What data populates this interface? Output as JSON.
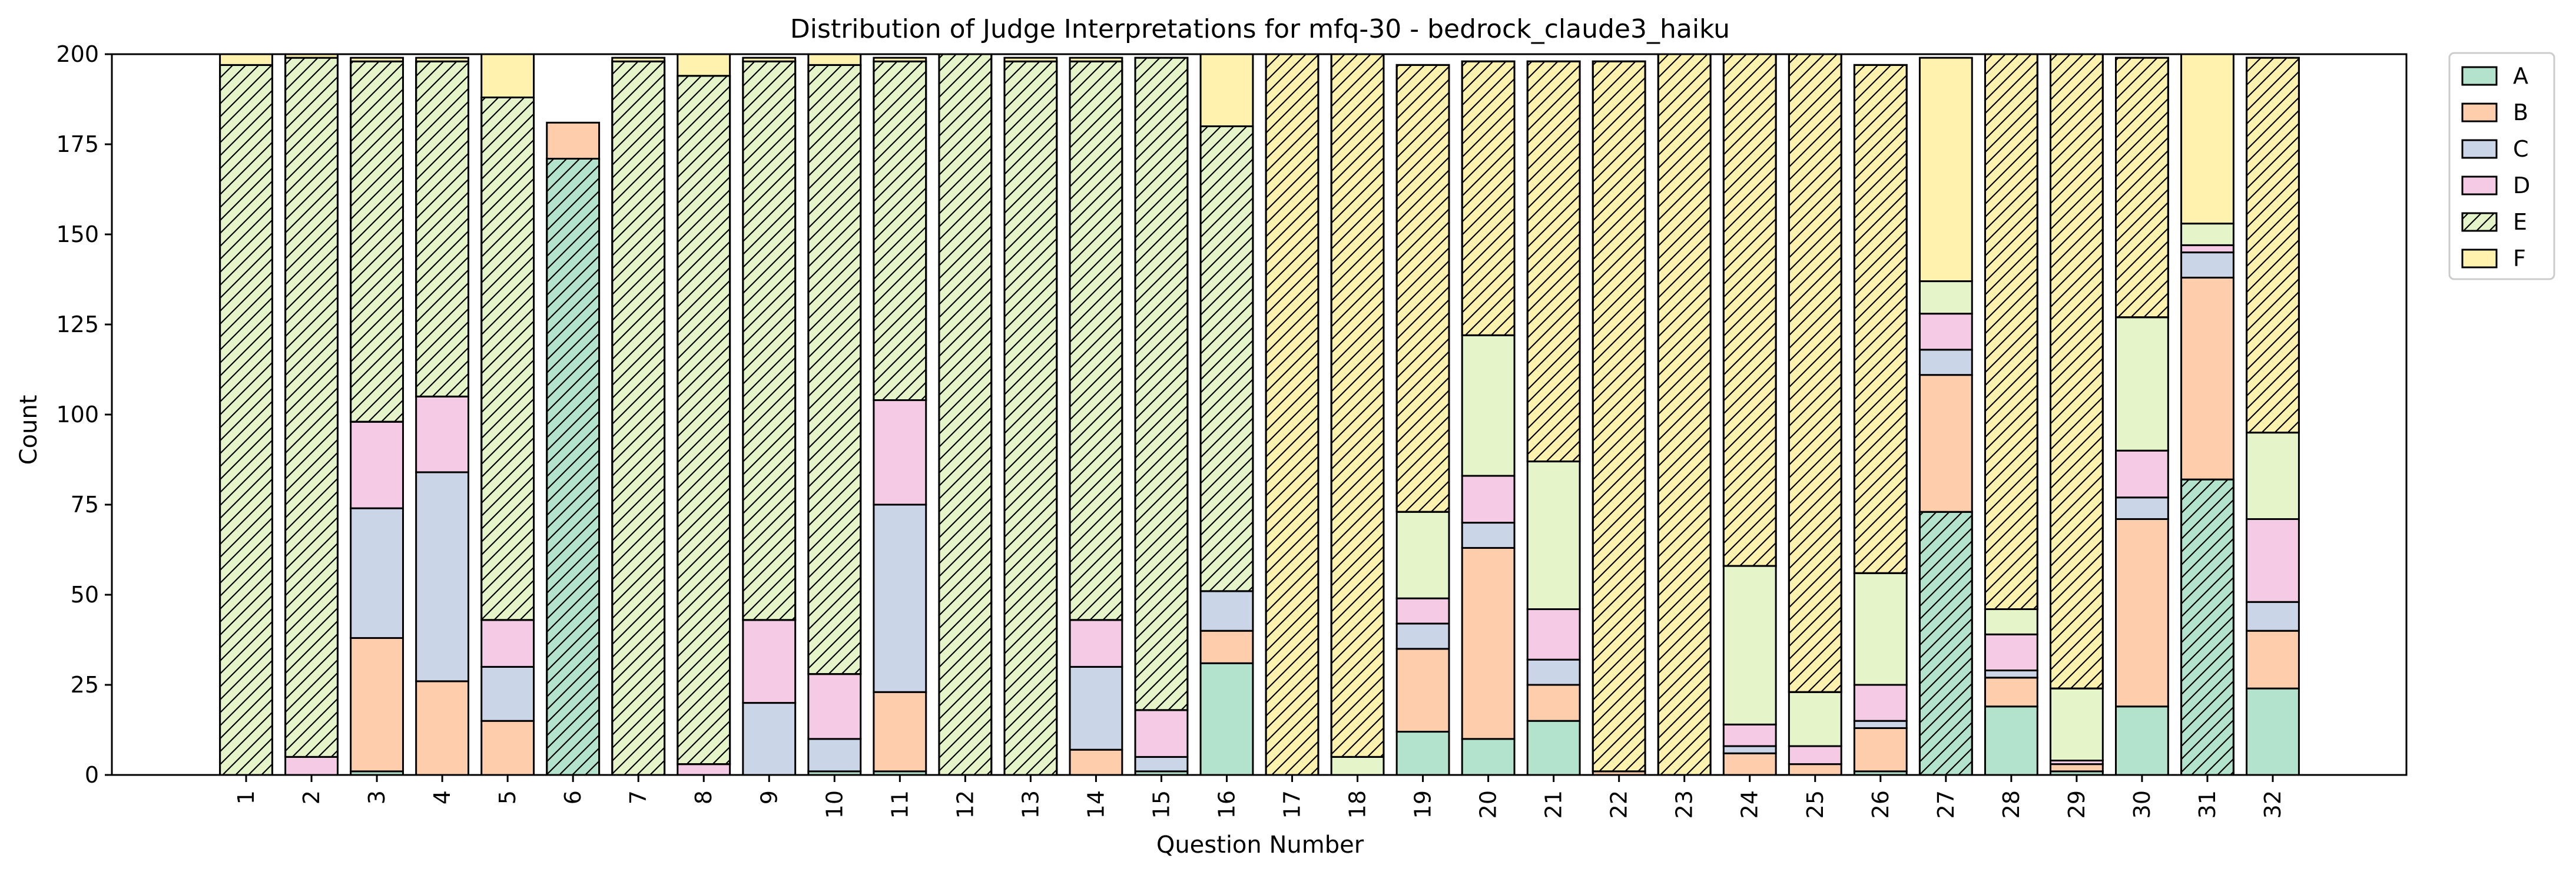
{
  "chart_data": {
    "type": "bar",
    "stacked": true,
    "title": "Distribution of Judge Interpretations for mfq-30 - bedrock_claude3_haiku",
    "xlabel": "Question Number",
    "ylabel": "Count",
    "ylim": [
      0,
      200
    ],
    "yticks": [
      0,
      25,
      50,
      75,
      100,
      125,
      150,
      175,
      200
    ],
    "grid": false,
    "legend_position": "outside-top-right",
    "categories": [
      "1",
      "2",
      "3",
      "4",
      "5",
      "6",
      "7",
      "8",
      "9",
      "10",
      "11",
      "12",
      "13",
      "14",
      "15",
      "16",
      "17",
      "18",
      "19",
      "20",
      "21",
      "22",
      "23",
      "24",
      "25",
      "26",
      "27",
      "28",
      "29",
      "30",
      "31",
      "32"
    ],
    "series": [
      {
        "name": "A",
        "color": "#b3e2cd",
        "values": [
          0,
          0,
          1,
          0,
          0,
          171,
          0,
          0,
          0,
          1,
          1,
          0,
          0,
          0,
          1,
          31,
          0,
          0,
          12,
          10,
          15,
          0,
          0,
          0,
          0,
          1,
          73,
          19,
          1,
          19,
          82,
          24
        ]
      },
      {
        "name": "B",
        "color": "#fdcdac",
        "values": [
          0,
          0,
          37,
          26,
          15,
          10,
          0,
          0,
          0,
          0,
          22,
          0,
          0,
          7,
          0,
          9,
          0,
          0,
          23,
          53,
          10,
          1,
          0,
          6,
          3,
          12,
          38,
          8,
          2,
          52,
          56,
          16
        ]
      },
      {
        "name": "C",
        "color": "#cbd5e8",
        "values": [
          0,
          0,
          36,
          58,
          15,
          0,
          0,
          0,
          20,
          9,
          52,
          0,
          0,
          23,
          4,
          11,
          0,
          0,
          7,
          7,
          7,
          0,
          0,
          2,
          0,
          2,
          7,
          2,
          0,
          6,
          7,
          8
        ]
      },
      {
        "name": "D",
        "color": "#f4cae4",
        "values": [
          0,
          5,
          24,
          21,
          13,
          0,
          0,
          3,
          23,
          18,
          29,
          0,
          0,
          13,
          13,
          0,
          0,
          0,
          7,
          13,
          14,
          0,
          0,
          6,
          5,
          10,
          10,
          10,
          1,
          13,
          2,
          23
        ]
      },
      {
        "name": "E",
        "color": "#e6f5c9",
        "values": [
          197,
          194,
          100,
          93,
          145,
          0,
          198,
          191,
          155,
          169,
          94,
          200,
          198,
          155,
          181,
          129,
          0,
          5,
          24,
          39,
          41,
          0,
          0,
          44,
          15,
          31,
          9,
          7,
          20,
          37,
          6,
          24
        ]
      },
      {
        "name": "F",
        "color": "#fff2ae",
        "values": [
          3,
          1,
          1,
          1,
          12,
          0,
          1,
          6,
          1,
          3,
          1,
          0,
          1,
          1,
          0,
          20,
          200,
          195,
          124,
          76,
          111,
          197,
          200,
          142,
          177,
          141,
          62,
          154,
          176,
          72,
          47,
          104
        ]
      }
    ],
    "hatch": {
      "description": "E hatched in bars 1-15 and 16,28,30,32 upper region; F hatched in bars 17-32 (dominant category); A hatched in bars 6, 27, 31",
      "hatched_segments": [
        [
          0,
          "E"
        ],
        [
          1,
          "E"
        ],
        [
          2,
          "E"
        ],
        [
          3,
          "E"
        ],
        [
          4,
          "E"
        ],
        [
          5,
          "A"
        ],
        [
          6,
          "E"
        ],
        [
          7,
          "E"
        ],
        [
          8,
          "E"
        ],
        [
          9,
          "E"
        ],
        [
          10,
          "E"
        ],
        [
          11,
          "E"
        ],
        [
          12,
          "E"
        ],
        [
          13,
          "E"
        ],
        [
          14,
          "E"
        ],
        [
          15,
          "E"
        ],
        [
          16,
          "F"
        ],
        [
          17,
          "F"
        ],
        [
          18,
          "F"
        ],
        [
          19,
          "F"
        ],
        [
          20,
          "F"
        ],
        [
          21,
          "F"
        ],
        [
          22,
          "F"
        ],
        [
          23,
          "F"
        ],
        [
          24,
          "F"
        ],
        [
          25,
          "F"
        ],
        [
          26,
          "A"
        ],
        [
          27,
          "F"
        ],
        [
          28,
          "F"
        ],
        [
          29,
          "F"
        ],
        [
          30,
          "A"
        ],
        [
          31,
          "F"
        ]
      ]
    }
  }
}
